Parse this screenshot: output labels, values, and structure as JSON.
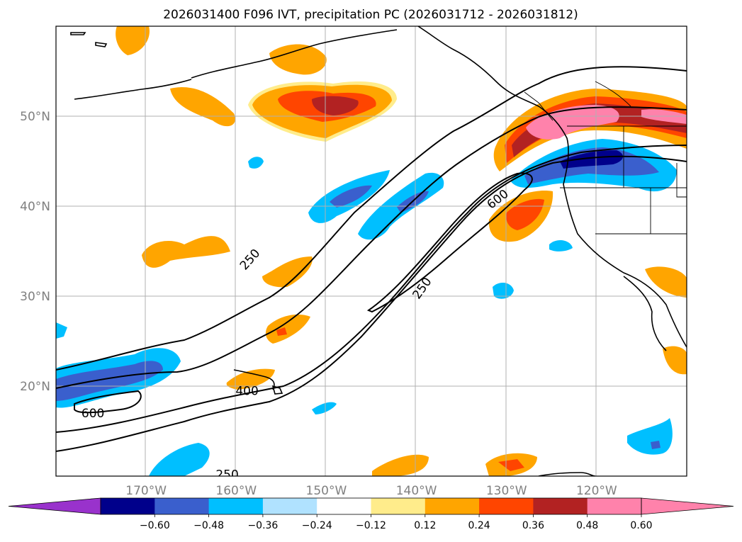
{
  "title": "2026031400 F096 IVT, precipitation PC (2026031712 - 2026031812)",
  "map": {
    "lon_range": [
      -180,
      -110
    ],
    "lat_range": [
      10,
      60
    ],
    "lat_ticks": [
      {
        "value": 20,
        "label": "20°N"
      },
      {
        "value": 30,
        "label": "30°N"
      },
      {
        "value": 40,
        "label": "40°N"
      },
      {
        "value": 50,
        "label": "50°N"
      }
    ],
    "lon_ticks": [
      {
        "value": -170,
        "label": "170°W"
      },
      {
        "value": -160,
        "label": "160°W"
      },
      {
        "value": -150,
        "label": "150°W"
      },
      {
        "value": -140,
        "label": "140°W"
      },
      {
        "value": -130,
        "label": "130°W"
      },
      {
        "value": -120,
        "label": "120°W"
      }
    ]
  },
  "ivt_contour_labels": [
    {
      "text": "250",
      "lon": -158.5,
      "lat": 34.1,
      "angle": -48
    },
    {
      "text": "600",
      "lon": -131.0,
      "lat": 40.8,
      "angle": -38
    },
    {
      "text": "250",
      "lon": -139.4,
      "lat": 30.9,
      "angle": -55
    },
    {
      "text": "400",
      "lon": -158.8,
      "lat": 19.5,
      "angle": 0
    },
    {
      "text": "600",
      "lon": -175.9,
      "lat": 17.0,
      "angle": 0
    },
    {
      "text": "250",
      "lon": -161.0,
      "lat": 10.2,
      "angle": 0
    }
  ],
  "colorbar": {
    "tick_labels": [
      "−0.60",
      "−0.48",
      "−0.36",
      "−0.24",
      "−0.12",
      "0.12",
      "0.24",
      "0.36",
      "0.48",
      "0.60"
    ],
    "under_color": "#9932cc",
    "colors": [
      "#00008b",
      "#3a5fcd",
      "#00bfff",
      "#b0e2ff",
      "#ffffff",
      "#ffec8b",
      "#ffa500",
      "#ff4500",
      "#b22222",
      "#ff82ab"
    ],
    "over_color": "#ff82ab"
  }
}
